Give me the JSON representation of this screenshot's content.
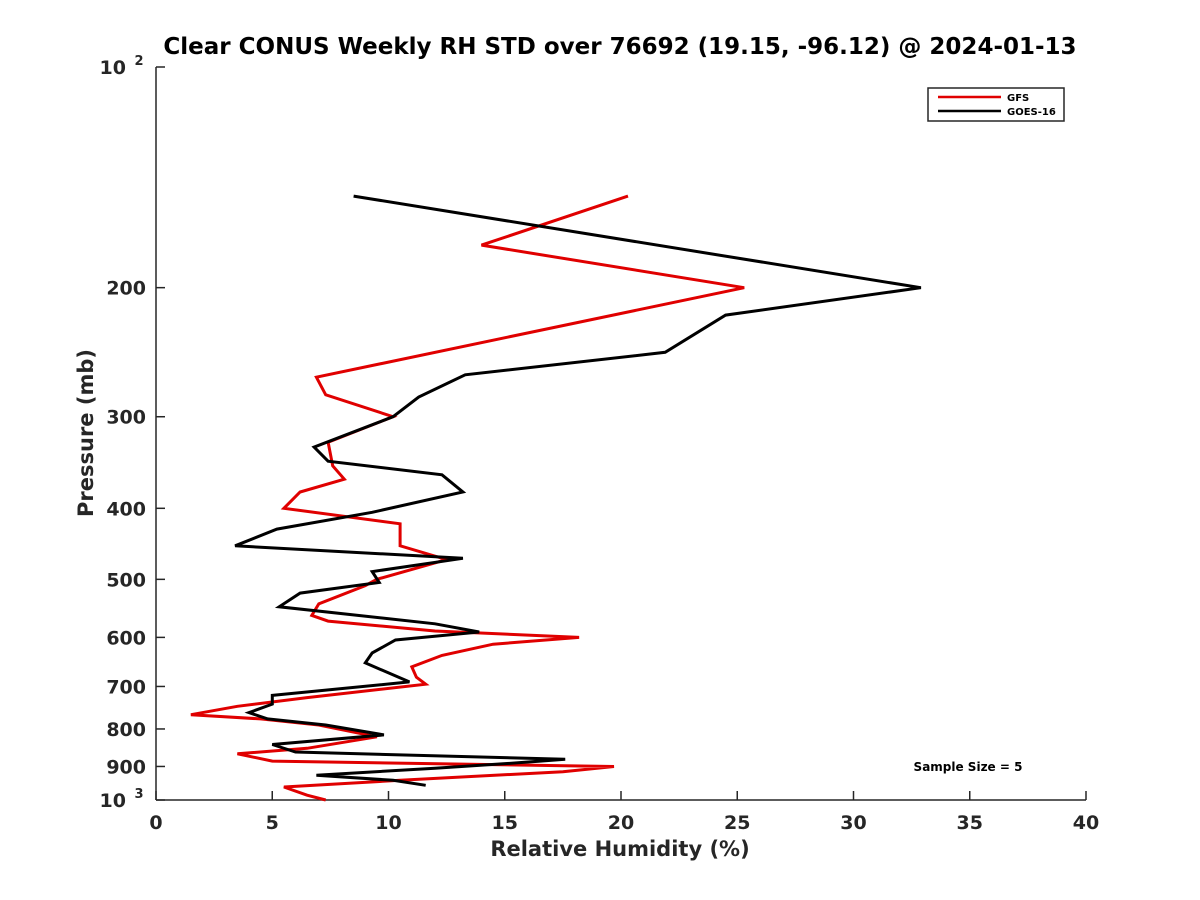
{
  "chart_data": {
    "type": "line",
    "title": "Clear CONUS Weekly RH STD over 76692 (19.15, -96.12) @ 2024-01-13",
    "xlabel": "Relative Humidity (%)",
    "ylabel": "Pressure (mb)",
    "xlim": [
      0,
      40
    ],
    "ylim": [
      100,
      1000
    ],
    "yscale": "log",
    "y_reversed": true,
    "grid": false,
    "legend_position": "top-right",
    "x_ticks": [
      0,
      5,
      10,
      15,
      20,
      25,
      30,
      35,
      40
    ],
    "x_tick_labels": [
      "0",
      "5",
      "10",
      "15",
      "20",
      "25",
      "30",
      "35",
      "40"
    ],
    "y_ticks": [
      200,
      300,
      400,
      500,
      600,
      700,
      800,
      900
    ],
    "y_tick_labels": [
      "200",
      "300",
      "400",
      "500",
      "600",
      "700",
      "800",
      "900"
    ],
    "y_decade_labels": [
      {
        "value": 100,
        "base": "10",
        "exp": "2"
      },
      {
        "value": 1000,
        "base": "10",
        "exp": "3"
      }
    ],
    "annotation": "Sample Size = 5",
    "series": [
      {
        "name": "GFS",
        "color": "#e00000",
        "points": [
          {
            "x": 20.3,
            "y": 150
          },
          {
            "x": 14.0,
            "y": 175
          },
          {
            "x": 25.3,
            "y": 200
          },
          {
            "x": 17.6,
            "y": 225
          },
          {
            "x": 6.9,
            "y": 265
          },
          {
            "x": 7.3,
            "y": 280
          },
          {
            "x": 10.2,
            "y": 300
          },
          {
            "x": 7.4,
            "y": 325
          },
          {
            "x": 7.6,
            "y": 350
          },
          {
            "x": 8.1,
            "y": 365
          },
          {
            "x": 6.2,
            "y": 380
          },
          {
            "x": 5.5,
            "y": 400
          },
          {
            "x": 10.5,
            "y": 420
          },
          {
            "x": 10.5,
            "y": 450
          },
          {
            "x": 12.5,
            "y": 470
          },
          {
            "x": 9.5,
            "y": 500
          },
          {
            "x": 9.0,
            "y": 510
          },
          {
            "x": 7.0,
            "y": 540
          },
          {
            "x": 6.7,
            "y": 560
          },
          {
            "x": 7.4,
            "y": 570
          },
          {
            "x": 12.0,
            "y": 588
          },
          {
            "x": 18.2,
            "y": 600
          },
          {
            "x": 14.5,
            "y": 613
          },
          {
            "x": 12.3,
            "y": 635
          },
          {
            "x": 11.0,
            "y": 658
          },
          {
            "x": 11.2,
            "y": 680
          },
          {
            "x": 11.6,
            "y": 695
          },
          {
            "x": 6.5,
            "y": 725
          },
          {
            "x": 3.5,
            "y": 745
          },
          {
            "x": 1.5,
            "y": 765
          },
          {
            "x": 4.5,
            "y": 775
          },
          {
            "x": 7.0,
            "y": 790
          },
          {
            "x": 9.5,
            "y": 820
          },
          {
            "x": 6.5,
            "y": 850
          },
          {
            "x": 3.5,
            "y": 865
          },
          {
            "x": 5.0,
            "y": 885
          },
          {
            "x": 19.7,
            "y": 900
          },
          {
            "x": 17.5,
            "y": 915
          },
          {
            "x": 10.5,
            "y": 940
          },
          {
            "x": 5.5,
            "y": 960
          },
          {
            "x": 6.5,
            "y": 985
          },
          {
            "x": 7.3,
            "y": 1000
          }
        ]
      },
      {
        "name": "GOES-16",
        "color": "#000000",
        "points": [
          {
            "x": 8.5,
            "y": 150
          },
          {
            "x": 32.9,
            "y": 200
          },
          {
            "x": 24.5,
            "y": 218
          },
          {
            "x": 21.9,
            "y": 245
          },
          {
            "x": 13.3,
            "y": 263
          },
          {
            "x": 11.3,
            "y": 282
          },
          {
            "x": 10.2,
            "y": 300
          },
          {
            "x": 6.8,
            "y": 330
          },
          {
            "x": 7.4,
            "y": 345
          },
          {
            "x": 12.3,
            "y": 360
          },
          {
            "x": 13.2,
            "y": 380
          },
          {
            "x": 9.3,
            "y": 405
          },
          {
            "x": 5.2,
            "y": 427
          },
          {
            "x": 3.4,
            "y": 450
          },
          {
            "x": 13.2,
            "y": 468
          },
          {
            "x": 9.3,
            "y": 488
          },
          {
            "x": 9.6,
            "y": 505
          },
          {
            "x": 6.2,
            "y": 522
          },
          {
            "x": 5.3,
            "y": 545
          },
          {
            "x": 12.0,
            "y": 575
          },
          {
            "x": 13.9,
            "y": 590
          },
          {
            "x": 10.3,
            "y": 605
          },
          {
            "x": 9.3,
            "y": 630
          },
          {
            "x": 9.0,
            "y": 650
          },
          {
            "x": 10.9,
            "y": 690
          },
          {
            "x": 5.0,
            "y": 720
          },
          {
            "x": 5.0,
            "y": 740
          },
          {
            "x": 4.0,
            "y": 760
          },
          {
            "x": 4.8,
            "y": 775
          },
          {
            "x": 7.3,
            "y": 790
          },
          {
            "x": 9.8,
            "y": 815
          },
          {
            "x": 5.0,
            "y": 840
          },
          {
            "x": 6.0,
            "y": 860
          },
          {
            "x": 17.6,
            "y": 880
          },
          {
            "x": 15.5,
            "y": 890
          },
          {
            "x": 12.0,
            "y": 905
          },
          {
            "x": 6.9,
            "y": 925
          },
          {
            "x": 10.2,
            "y": 940
          },
          {
            "x": 11.6,
            "y": 955
          }
        ]
      }
    ]
  }
}
